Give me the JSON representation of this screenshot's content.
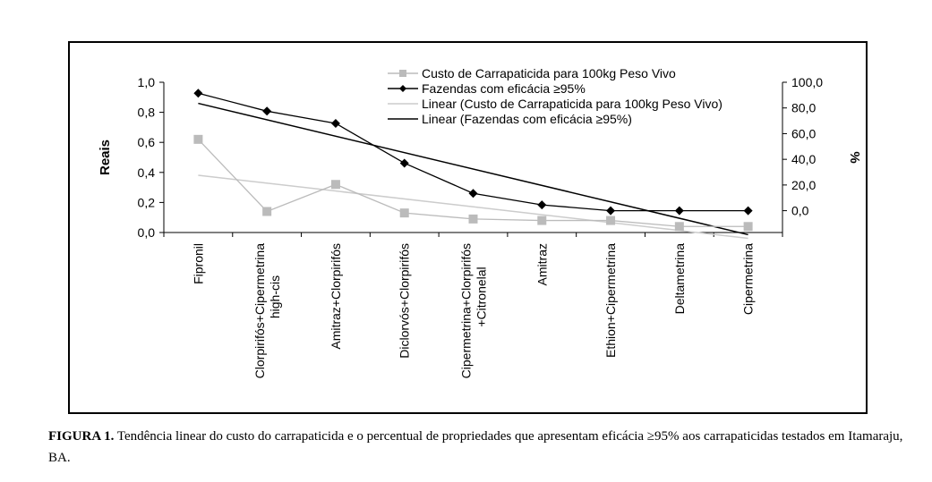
{
  "chart_data": {
    "type": "line",
    "categories": [
      [
        "Fipronil"
      ],
      [
        "Clorpirifós+Cipermetrina",
        "high-cis"
      ],
      [
        "Amitraz+Clorpirifós"
      ],
      [
        "Diclorvós+Clorpirifós"
      ],
      [
        "Cipermetrina+Clorpirifós",
        "+Citronelal"
      ],
      [
        "Amitraz"
      ],
      [
        "Ethion+Cipermetrina"
      ],
      [
        "Deltametrina"
      ],
      [
        "Cipermetrina"
      ]
    ],
    "ylabel": "Reais",
    "y2label": "%",
    "ylim": [
      0,
      1.0
    ],
    "y2lim": [
      -17,
      100
    ],
    "yticks": [
      "0,0",
      "0,2",
      "0,4",
      "0,6",
      "0,8",
      "1,0"
    ],
    "y2ticks": [
      "0,0",
      "20,0",
      "40,0",
      "60,0",
      "80,0",
      "100,0"
    ],
    "y2tick_values": [
      0,
      20,
      40,
      60,
      80,
      100
    ],
    "series": [
      {
        "name": "Custo de Carrapaticida para 100kg Peso Vivo",
        "axis": "left",
        "color": "#bbbbbb",
        "marker": "square",
        "values": [
          0.62,
          0.14,
          0.32,
          0.13,
          0.09,
          0.08,
          0.08,
          0.04,
          0.04
        ]
      },
      {
        "name": "Fazendas com eficácia ≥95%",
        "axis": "right",
        "color": "#000000",
        "marker": "diamond",
        "values": [
          91.5,
          77.5,
          68.0,
          37.0,
          13.5,
          4.5,
          0.0,
          0.0,
          0.0
        ]
      }
    ],
    "trendlines": [
      {
        "name": "Linear (Custo de Carrapaticida para 100kg Peso Vivo)",
        "of": 0,
        "axis": "left",
        "color": "#cccccc"
      },
      {
        "name": "Linear (Fazendas com eficácia ≥95%)",
        "of": 1,
        "axis": "right",
        "color": "#000000"
      }
    ]
  },
  "caption": {
    "label": "FIGURA 1.",
    "text": " Tendência linear do custo do carrapaticida e o percentual de propriedades que apresentam eficácia ≥95% aos carrapaticidas testados em Itamaraju, BA."
  }
}
